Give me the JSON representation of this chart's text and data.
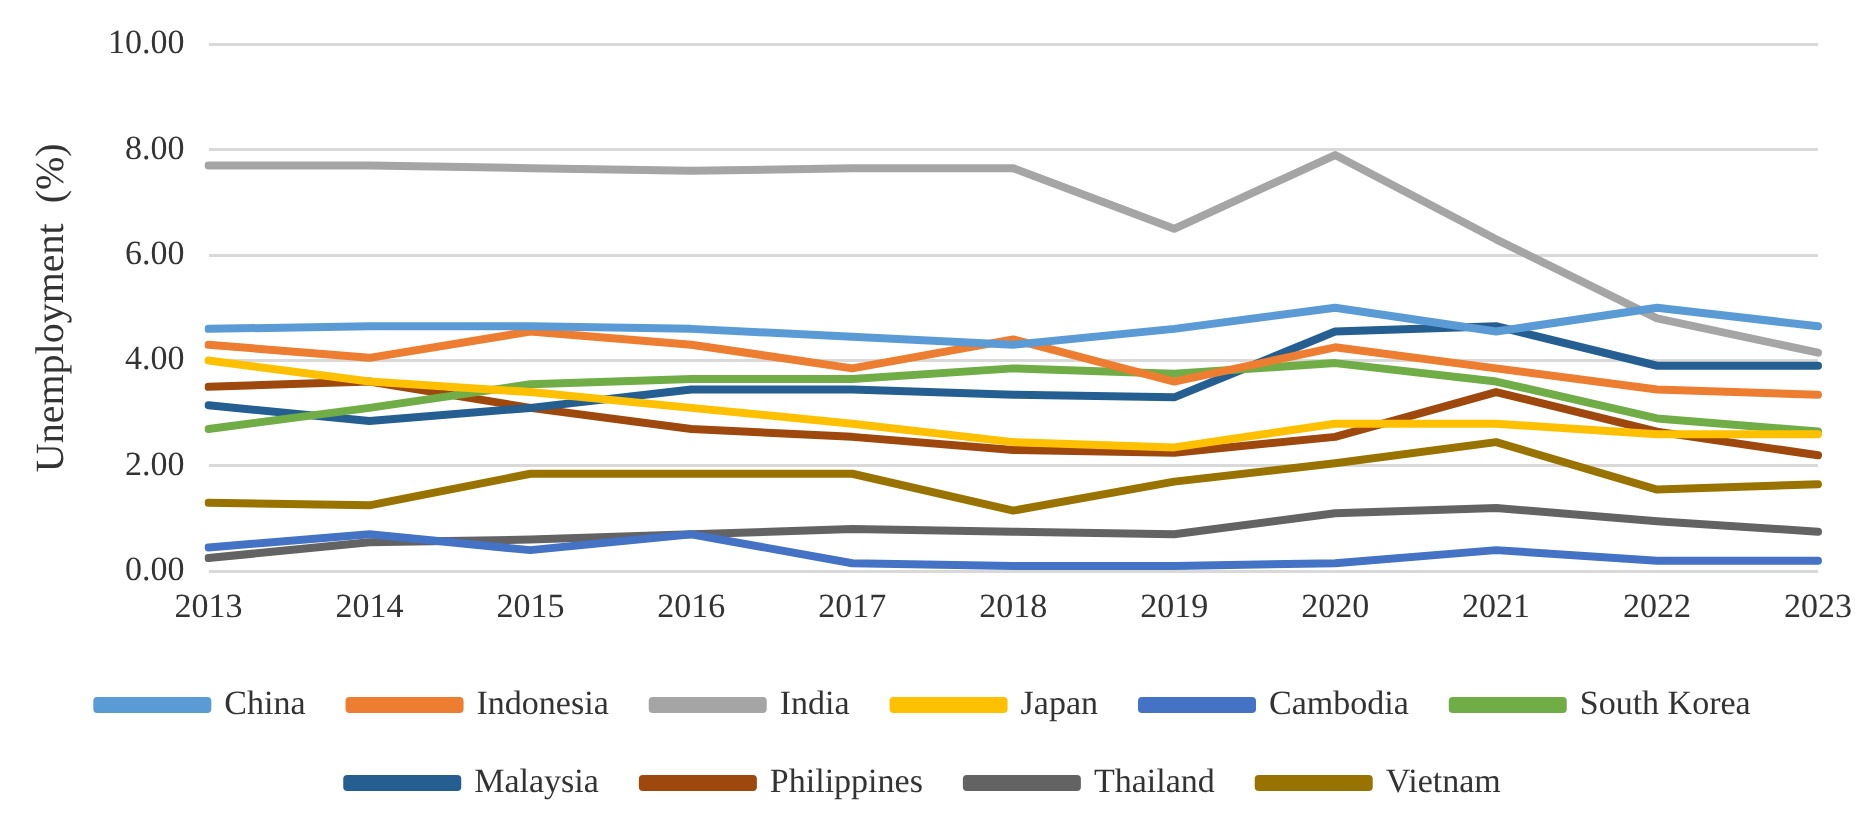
{
  "chart_data": {
    "type": "line",
    "ylabel": "Unemployment  (%)",
    "categories": [
      "2013",
      "2014",
      "2015",
      "2016",
      "2017",
      "2018",
      "2019",
      "2020",
      "2021",
      "2022",
      "2023"
    ],
    "ylim": [
      0,
      10
    ],
    "yticks": [
      {
        "value": 0,
        "label": "0.00"
      },
      {
        "value": 2,
        "label": "2.00"
      },
      {
        "value": 4,
        "label": "4.00"
      },
      {
        "value": 6,
        "label": "6.00"
      },
      {
        "value": 8,
        "label": "8.00"
      },
      {
        "value": 10,
        "label": "10.00"
      }
    ],
    "grid": "y",
    "legend": "bottom",
    "marker": "none",
    "line_style": "solid",
    "series": [
      {
        "name": "China",
        "color": "#5b9bd5",
        "values": [
          4.6,
          4.65,
          4.65,
          4.6,
          4.45,
          4.3,
          4.6,
          5.0,
          4.55,
          5.0,
          4.65
        ]
      },
      {
        "name": "Indonesia",
        "color": "#ed7d31",
        "values": [
          4.3,
          4.05,
          4.55,
          4.3,
          3.85,
          4.4,
          3.6,
          4.25,
          3.85,
          3.45,
          3.35
        ]
      },
      {
        "name": "India",
        "color": "#a5a5a5",
        "values": [
          7.7,
          7.7,
          7.65,
          7.6,
          7.65,
          7.65,
          6.5,
          7.9,
          6.3,
          4.8,
          4.15
        ]
      },
      {
        "name": "Japan",
        "color": "#ffc000",
        "values": [
          4.0,
          3.6,
          3.4,
          3.1,
          2.8,
          2.45,
          2.35,
          2.8,
          2.8,
          2.6,
          2.6
        ]
      },
      {
        "name": "Cambodia",
        "color": "#4472c4",
        "values": [
          0.45,
          0.7,
          0.4,
          0.7,
          0.15,
          0.1,
          0.1,
          0.15,
          0.4,
          0.2,
          0.2
        ]
      },
      {
        "name": "South Korea",
        "color": "#70ad47",
        "values": [
          2.7,
          3.1,
          3.55,
          3.65,
          3.65,
          3.85,
          3.75,
          3.95,
          3.6,
          2.9,
          2.65
        ]
      },
      {
        "name": "Malaysia",
        "color": "#255e91",
        "values": [
          3.15,
          2.85,
          3.1,
          3.45,
          3.45,
          3.35,
          3.3,
          4.55,
          4.65,
          3.9,
          3.9
        ]
      },
      {
        "name": "Philippines",
        "color": "#9e480e",
        "values": [
          3.5,
          3.6,
          3.1,
          2.7,
          2.55,
          2.3,
          2.25,
          2.55,
          3.4,
          2.65,
          2.2
        ]
      },
      {
        "name": "Thailand",
        "color": "#636363",
        "values": [
          0.25,
          0.55,
          0.6,
          0.7,
          0.8,
          0.75,
          0.7,
          1.1,
          1.2,
          0.95,
          0.75
        ]
      },
      {
        "name": "Vietnam",
        "color": "#997300",
        "values": [
          1.3,
          1.25,
          1.85,
          1.85,
          1.85,
          1.15,
          1.7,
          2.05,
          2.45,
          1.55,
          1.65
        ]
      }
    ]
  }
}
